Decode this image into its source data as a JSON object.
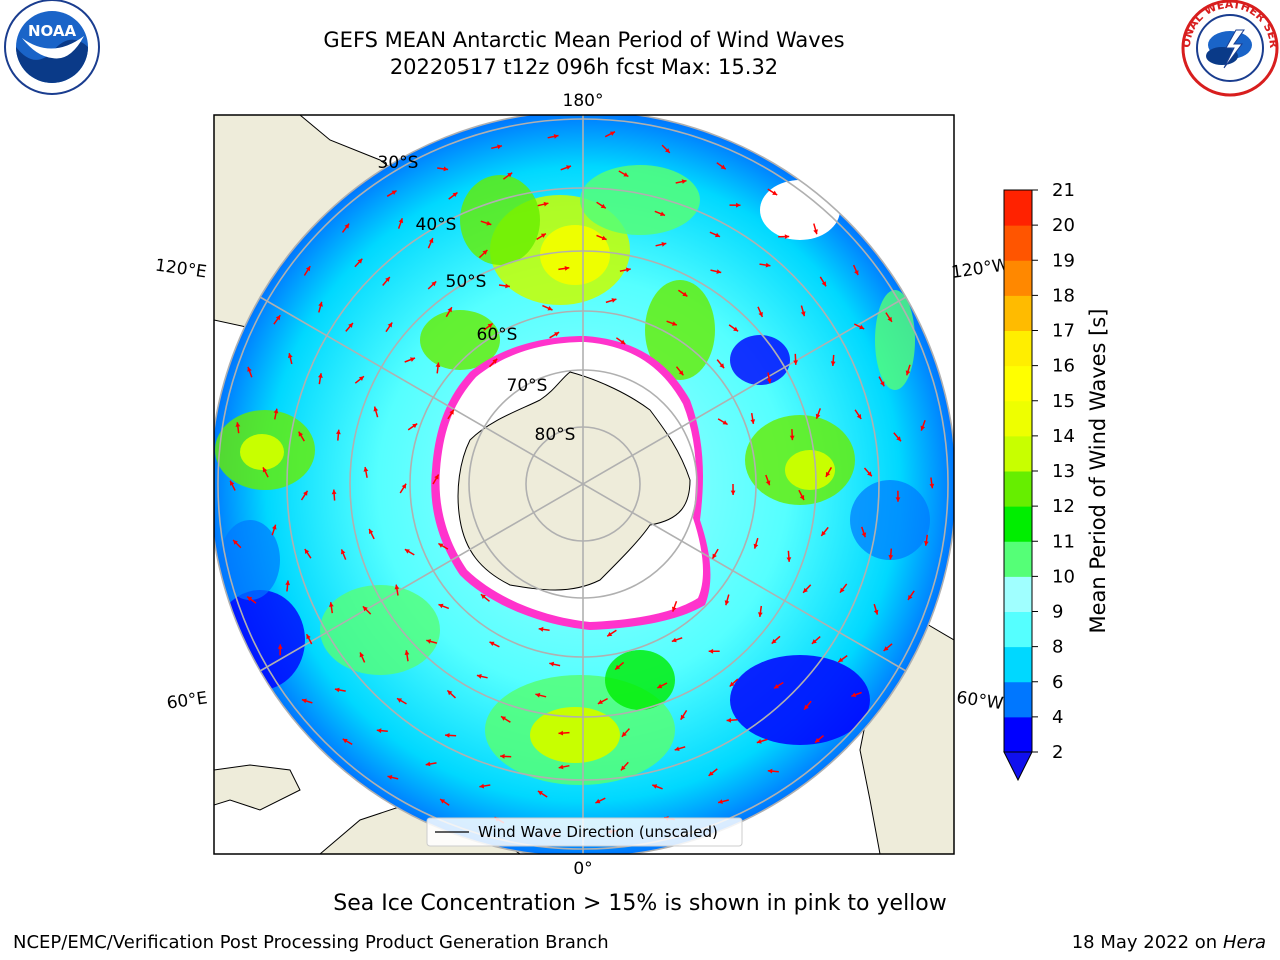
{
  "title": {
    "line1": "GEFS MEAN Antarctic Mean Period of Wind Waves",
    "line2": "20220517 t12z 096h fcst   Max: 15.32"
  },
  "logos": {
    "left": {
      "name": "noaa-logo",
      "text": "NOAA",
      "ring_text": "NATIONAL OCEANIC AND ATMOSPHERIC ADMINISTRATION · U.S. DEPARTMENT OF COMMERCE"
    },
    "right": {
      "name": "nws-logo",
      "ring_text": "NATIONAL WEATHER SERVICE"
    }
  },
  "map": {
    "projection": "south-polar-stereographic",
    "lon_labels": [
      "180°",
      "120°E",
      "120°W",
      "60°E",
      "60°W",
      "0°"
    ],
    "lat_labels": [
      "30°S",
      "40°S",
      "50°S",
      "60°S",
      "70°S",
      "80°S"
    ],
    "legend": "Wind Wave Direction (unscaled)",
    "colors": {
      "land": "#eeecda",
      "ice_edge": "#ff33cc",
      "arrow": "#ff0000",
      "grid": "#b0b0b0"
    }
  },
  "colorbar": {
    "label": "Mean Period of Wind Waves [s]",
    "ticks": [
      "2",
      "4",
      "6",
      "8",
      "9",
      "10",
      "11",
      "12",
      "13",
      "14",
      "15",
      "16",
      "17",
      "18",
      "19",
      "20",
      "21"
    ],
    "levels": [
      2,
      4,
      6,
      8,
      9,
      10,
      11,
      12,
      13,
      14,
      15,
      16,
      17,
      18,
      19,
      20,
      21
    ],
    "colors": [
      "#0000ff",
      "#0077ff",
      "#00d8ff",
      "#55ffff",
      "#a0ffff",
      "#55ff77",
      "#00ee00",
      "#66ee00",
      "#c8ff00",
      "#eeff00",
      "#ffff00",
      "#ffee00",
      "#ffbb00",
      "#ff8800",
      "#ff5500",
      "#ff2200"
    ],
    "under_color": "#1010ee",
    "extend": "min"
  },
  "note": "Sea Ice Concentration > 15% is shown in pink to yellow",
  "footer": {
    "left": "NCEP/EMC/Verification Post Processing Product Generation Branch",
    "right_prefix": "18 May 2022 on",
    "right_italic": "Hera"
  }
}
